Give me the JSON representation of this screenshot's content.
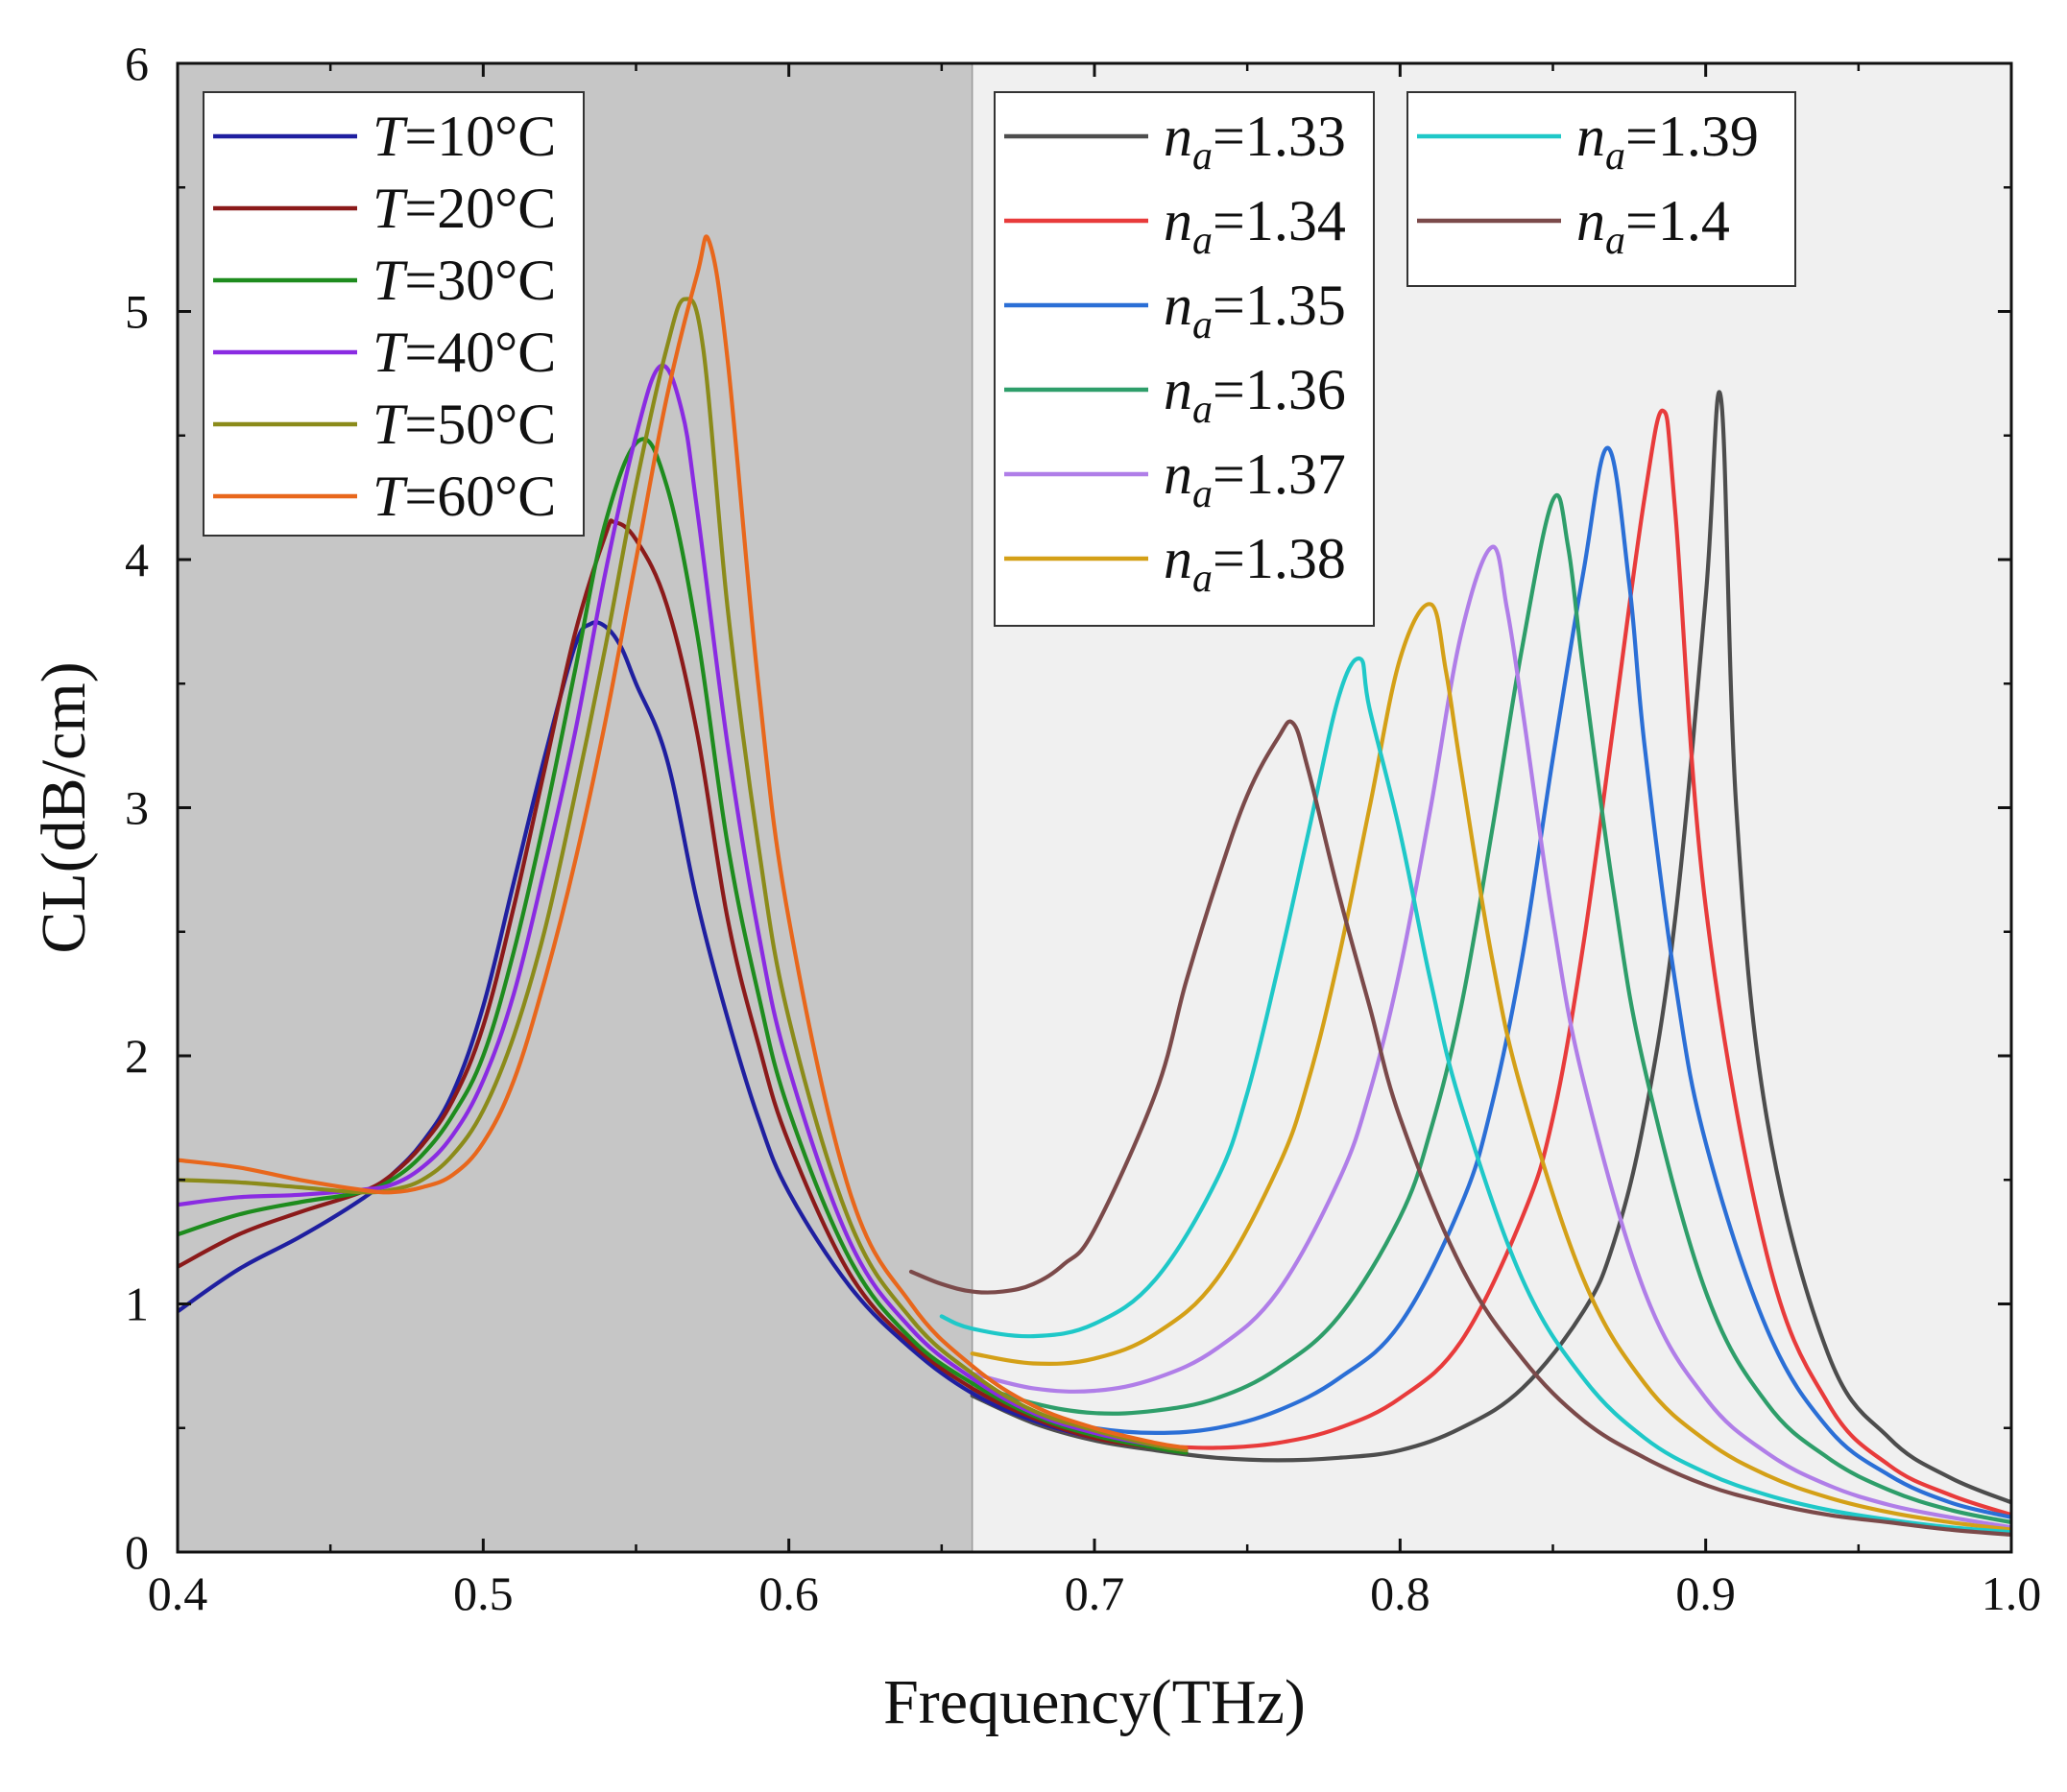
{
  "chart_data": {
    "type": "line",
    "xlabel": "Frequency(THz)",
    "ylabel": "CL(dB/cm)",
    "xlim": [
      0.4,
      1.0
    ],
    "ylim": [
      0,
      6
    ],
    "xticks": [
      0.4,
      0.5,
      0.6,
      0.7,
      0.8,
      0.9,
      1.0
    ],
    "xtick_labels": [
      "0.4",
      "0.5",
      "0.6",
      "0.7",
      "0.8",
      "0.9",
      "1.0"
    ],
    "yticks": [
      0,
      1,
      2,
      3,
      4,
      5,
      6
    ],
    "ytick_labels": [
      "0",
      "1",
      "2",
      "3",
      "4",
      "5",
      "6"
    ],
    "shaded_regions": [
      {
        "x0": 0.4,
        "x1": 0.66,
        "color": "#c6c6c6"
      },
      {
        "x0": 0.66,
        "x1": 1.0,
        "color": "#f0f0f0"
      }
    ],
    "legends": [
      {
        "placement": "top-left",
        "var": "T",
        "entries": [
          "=10°C",
          "=20°C",
          "=30°C",
          "=40°C",
          "=50°C",
          "=60°C"
        ]
      },
      {
        "placement": "top-center",
        "var": "n",
        "sub": "a",
        "entries": [
          "=1.33",
          "=1.34",
          "=1.35",
          "=1.36",
          "=1.37",
          "=1.38"
        ]
      },
      {
        "placement": "top-right",
        "var": "n",
        "sub": "a",
        "entries": [
          "=1.39",
          "=1.4"
        ]
      }
    ],
    "series": [
      {
        "name": "T=10°C",
        "color": "#1f1fa0",
        "x": [
          0.4,
          0.42,
          0.44,
          0.46,
          0.47,
          0.48,
          0.49,
          0.5,
          0.51,
          0.52,
          0.53,
          0.535,
          0.54,
          0.545,
          0.55,
          0.56,
          0.57,
          0.58,
          0.59,
          0.6,
          0.62,
          0.64,
          0.66,
          0.68,
          0.7,
          0.72,
          0.73
        ],
        "y": [
          0.97,
          1.14,
          1.27,
          1.42,
          1.52,
          1.65,
          1.85,
          2.2,
          2.7,
          3.2,
          3.65,
          3.74,
          3.73,
          3.65,
          3.5,
          3.2,
          2.62,
          2.15,
          1.75,
          1.45,
          1.07,
          0.82,
          0.64,
          0.53,
          0.46,
          0.42,
          0.4
        ]
      },
      {
        "name": "T=20°C",
        "color": "#8b1a1a",
        "x": [
          0.4,
          0.42,
          0.44,
          0.46,
          0.47,
          0.48,
          0.49,
          0.5,
          0.51,
          0.52,
          0.53,
          0.54,
          0.543,
          0.55,
          0.56,
          0.57,
          0.58,
          0.59,
          0.6,
          0.62,
          0.64,
          0.66,
          0.68,
          0.7,
          0.72,
          0.73
        ],
        "y": [
          1.15,
          1.28,
          1.37,
          1.45,
          1.52,
          1.64,
          1.82,
          2.12,
          2.6,
          3.15,
          3.7,
          4.1,
          4.15,
          4.08,
          3.82,
          3.3,
          2.55,
          2.05,
          1.65,
          1.12,
          0.84,
          0.66,
          0.54,
          0.46,
          0.42,
          0.4
        ]
      },
      {
        "name": "T=30°C",
        "color": "#1e8c1e",
        "x": [
          0.4,
          0.42,
          0.44,
          0.46,
          0.47,
          0.48,
          0.49,
          0.5,
          0.51,
          0.52,
          0.53,
          0.54,
          0.551,
          0.56,
          0.57,
          0.58,
          0.59,
          0.6,
          0.62,
          0.64,
          0.66,
          0.68,
          0.7,
          0.72,
          0.73
        ],
        "y": [
          1.28,
          1.36,
          1.41,
          1.45,
          1.5,
          1.6,
          1.76,
          2.0,
          2.42,
          2.95,
          3.55,
          4.15,
          4.48,
          4.3,
          3.7,
          2.85,
          2.25,
          1.78,
          1.18,
          0.86,
          0.68,
          0.55,
          0.47,
          0.42,
          0.4
        ]
      },
      {
        "name": "T=40°C",
        "color": "#8a2be2",
        "x": [
          0.4,
          0.42,
          0.44,
          0.46,
          0.47,
          0.48,
          0.49,
          0.5,
          0.51,
          0.52,
          0.53,
          0.54,
          0.55,
          0.558,
          0.565,
          0.57,
          0.58,
          0.59,
          0.6,
          0.62,
          0.64,
          0.66,
          0.68,
          0.7,
          0.72,
          0.73
        ],
        "y": [
          1.4,
          1.43,
          1.44,
          1.46,
          1.48,
          1.55,
          1.68,
          1.9,
          2.25,
          2.75,
          3.3,
          3.95,
          4.5,
          4.78,
          4.6,
          4.2,
          3.25,
          2.5,
          1.95,
          1.25,
          0.9,
          0.7,
          0.56,
          0.48,
          0.43,
          0.41
        ]
      },
      {
        "name": "T=50°C",
        "color": "#8b8b1a",
        "x": [
          0.4,
          0.42,
          0.44,
          0.46,
          0.47,
          0.48,
          0.49,
          0.5,
          0.51,
          0.52,
          0.53,
          0.54,
          0.55,
          0.56,
          0.566,
          0.572,
          0.58,
          0.59,
          0.6,
          0.62,
          0.64,
          0.66,
          0.68,
          0.7,
          0.72,
          0.73
        ],
        "y": [
          1.5,
          1.49,
          1.47,
          1.45,
          1.46,
          1.5,
          1.6,
          1.78,
          2.08,
          2.5,
          3.05,
          3.65,
          4.3,
          4.85,
          5.05,
          4.85,
          3.8,
          2.85,
          2.15,
          1.33,
          0.94,
          0.72,
          0.57,
          0.49,
          0.43,
          0.41
        ]
      },
      {
        "name": "T=60°C",
        "color": "#e8671c",
        "x": [
          0.4,
          0.42,
          0.44,
          0.46,
          0.47,
          0.48,
          0.49,
          0.5,
          0.51,
          0.52,
          0.53,
          0.54,
          0.55,
          0.56,
          0.57,
          0.574,
          0.58,
          0.59,
          0.6,
          0.62,
          0.64,
          0.66,
          0.68,
          0.7,
          0.72,
          0.73
        ],
        "y": [
          1.58,
          1.55,
          1.5,
          1.46,
          1.45,
          1.47,
          1.52,
          1.65,
          1.9,
          2.3,
          2.78,
          3.35,
          4.0,
          4.65,
          5.15,
          5.28,
          4.8,
          3.5,
          2.55,
          1.45,
          1.0,
          0.75,
          0.59,
          0.5,
          0.44,
          0.42
        ]
      },
      {
        "name": "na=1.33",
        "color": "#4d4d4d",
        "x": [
          0.66,
          0.68,
          0.7,
          0.72,
          0.74,
          0.76,
          0.78,
          0.8,
          0.82,
          0.84,
          0.86,
          0.87,
          0.88,
          0.89,
          0.9,
          0.905,
          0.91,
          0.92,
          0.94,
          0.96,
          0.98,
          1.0
        ],
        "y": [
          0.63,
          0.52,
          0.45,
          0.41,
          0.38,
          0.37,
          0.38,
          0.41,
          0.5,
          0.66,
          0.97,
          1.25,
          1.75,
          2.55,
          3.85,
          4.65,
          3.0,
          1.75,
          0.8,
          0.46,
          0.3,
          0.2
        ]
      },
      {
        "name": "na=1.34",
        "color": "#e83b3b",
        "x": [
          0.66,
          0.68,
          0.7,
          0.72,
          0.74,
          0.76,
          0.78,
          0.8,
          0.82,
          0.84,
          0.85,
          0.86,
          0.87,
          0.88,
          0.886,
          0.89,
          0.9,
          0.92,
          0.94,
          0.96,
          0.98,
          1.0
        ],
        "y": [
          0.64,
          0.53,
          0.46,
          0.43,
          0.42,
          0.44,
          0.5,
          0.62,
          0.85,
          1.35,
          1.75,
          2.45,
          3.35,
          4.25,
          4.6,
          4.2,
          2.6,
          1.2,
          0.6,
          0.35,
          0.23,
          0.15
        ]
      },
      {
        "name": "na=1.35",
        "color": "#2b6fd6",
        "x": [
          0.66,
          0.68,
          0.7,
          0.72,
          0.74,
          0.76,
          0.78,
          0.8,
          0.82,
          0.83,
          0.84,
          0.85,
          0.86,
          0.868,
          0.875,
          0.88,
          0.89,
          0.9,
          0.92,
          0.94,
          0.96,
          0.98,
          1.0
        ],
        "y": [
          0.65,
          0.56,
          0.5,
          0.48,
          0.5,
          0.57,
          0.7,
          0.92,
          1.4,
          1.8,
          2.4,
          3.2,
          3.95,
          4.45,
          3.9,
          3.25,
          2.3,
          1.65,
          0.9,
          0.5,
          0.31,
          0.2,
          0.14
        ]
      },
      {
        "name": "na=1.36",
        "color": "#2e9e6a",
        "x": [
          0.66,
          0.68,
          0.7,
          0.72,
          0.74,
          0.76,
          0.78,
          0.8,
          0.81,
          0.82,
          0.83,
          0.84,
          0.85,
          0.855,
          0.86,
          0.87,
          0.88,
          0.9,
          0.92,
          0.94,
          0.96,
          0.98,
          1.0
        ],
        "y": [
          0.68,
          0.6,
          0.56,
          0.57,
          0.62,
          0.74,
          0.95,
          1.35,
          1.7,
          2.2,
          2.9,
          3.65,
          4.24,
          4.05,
          3.55,
          2.65,
          1.95,
          1.05,
          0.6,
          0.38,
          0.25,
          0.17,
          0.12
        ]
      },
      {
        "name": "na=1.37",
        "color": "#b07ee8",
        "x": [
          0.66,
          0.68,
          0.7,
          0.72,
          0.74,
          0.76,
          0.78,
          0.79,
          0.8,
          0.81,
          0.82,
          0.83,
          0.835,
          0.84,
          0.85,
          0.86,
          0.88,
          0.9,
          0.92,
          0.94,
          0.96,
          0.98,
          1.0
        ],
        "y": [
          0.72,
          0.66,
          0.65,
          0.7,
          0.82,
          1.05,
          1.5,
          1.85,
          2.35,
          3.0,
          3.7,
          4.05,
          3.8,
          3.4,
          2.55,
          1.9,
          1.05,
          0.62,
          0.4,
          0.27,
          0.19,
          0.14,
          0.1
        ]
      },
      {
        "name": "na=1.38",
        "color": "#d4a017",
        "x": [
          0.66,
          0.68,
          0.7,
          0.72,
          0.74,
          0.76,
          0.77,
          0.78,
          0.79,
          0.8,
          0.81,
          0.815,
          0.82,
          0.83,
          0.84,
          0.86,
          0.88,
          0.9,
          0.92,
          0.94,
          0.96,
          0.98,
          1.0
        ],
        "y": [
          0.8,
          0.76,
          0.78,
          0.88,
          1.1,
          1.55,
          1.9,
          2.4,
          3.0,
          3.6,
          3.82,
          3.55,
          3.15,
          2.4,
          1.85,
          1.1,
          0.68,
          0.45,
          0.31,
          0.22,
          0.16,
          0.12,
          0.09
        ]
      },
      {
        "name": "na=1.39",
        "color": "#1fc8c8",
        "x": [
          0.65,
          0.66,
          0.68,
          0.7,
          0.72,
          0.74,
          0.75,
          0.76,
          0.77,
          0.78,
          0.787,
          0.79,
          0.8,
          0.81,
          0.82,
          0.84,
          0.86,
          0.88,
          0.9,
          0.92,
          0.94,
          0.96,
          0.98,
          1.0
        ],
        "y": [
          0.95,
          0.9,
          0.87,
          0.92,
          1.1,
          1.5,
          1.85,
          2.35,
          2.9,
          3.45,
          3.6,
          3.4,
          2.9,
          2.3,
          1.8,
          1.1,
          0.7,
          0.46,
          0.32,
          0.23,
          0.17,
          0.13,
          0.1,
          0.08
        ]
      },
      {
        "name": "na=1.4",
        "color": "#7b4a4a",
        "x": [
          0.64,
          0.65,
          0.66,
          0.67,
          0.68,
          0.69,
          0.7,
          0.72,
          0.73,
          0.74,
          0.75,
          0.76,
          0.765,
          0.77,
          0.78,
          0.79,
          0.8,
          0.82,
          0.84,
          0.86,
          0.88,
          0.9,
          0.92,
          0.94,
          0.96,
          0.98,
          1.0
        ],
        "y": [
          1.13,
          1.08,
          1.05,
          1.05,
          1.08,
          1.16,
          1.3,
          1.85,
          2.3,
          2.7,
          3.05,
          3.28,
          3.34,
          3.15,
          2.65,
          2.2,
          1.75,
          1.15,
          0.78,
          0.53,
          0.38,
          0.27,
          0.2,
          0.15,
          0.12,
          0.09,
          0.07
        ]
      }
    ]
  }
}
